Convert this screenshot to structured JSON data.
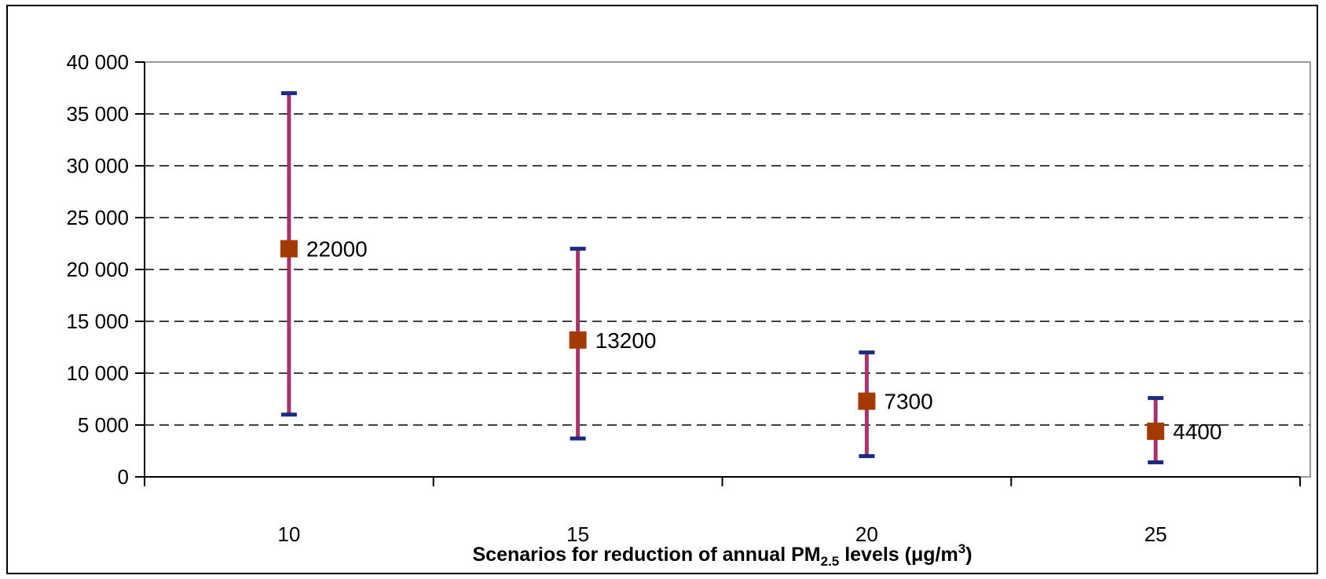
{
  "chart_data": {
    "type": "scatter",
    "title": "",
    "xlabel": {
      "prefix": "Scenarios for reduction of annual PM",
      "subscript": "2.5",
      "middle": " levels (μg/m",
      "superscript": "3",
      "suffix": ")"
    },
    "ylabel": "",
    "categories": [
      "10",
      "15",
      "20",
      "25"
    ],
    "ylim": [
      0,
      40000
    ],
    "yticks": [
      0,
      5000,
      10000,
      15000,
      20000,
      25000,
      30000,
      35000,
      40000
    ],
    "ytick_labels": [
      "0",
      "5 000",
      "10 000",
      "15 000",
      "20 000",
      "25 000",
      "30 000",
      "35 000",
      "40 000"
    ],
    "grid": "horizontal-dashed",
    "points": [
      {
        "x": "10",
        "value": 22000,
        "low": 6000,
        "high": 37000,
        "label": "22000"
      },
      {
        "x": "15",
        "value": 13200,
        "low": 3700,
        "high": 22000,
        "label": "13200"
      },
      {
        "x": "20",
        "value": 7300,
        "low": 2000,
        "high": 12000,
        "label": "7300"
      },
      {
        "x": "25",
        "value": 4400,
        "low": 1400,
        "high": 7600,
        "label": "4400"
      }
    ],
    "colors": {
      "marker": "#a33a00",
      "errorbar": "#a8336a",
      "cap": "#1c2b80",
      "grid": "#000000",
      "plot_border": "#9a9a9a"
    }
  }
}
